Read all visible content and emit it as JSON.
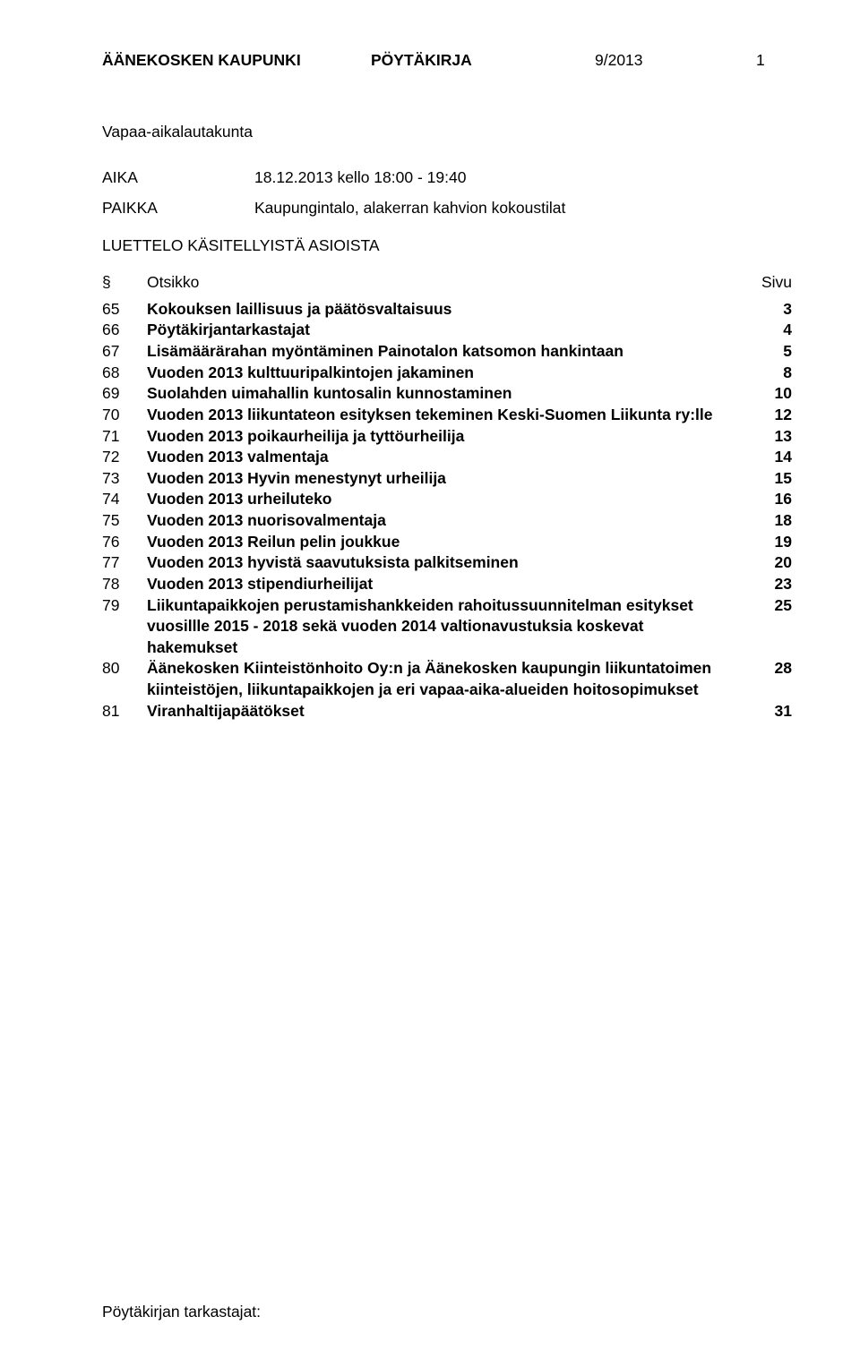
{
  "header": {
    "org": "ÄÄNEKOSKEN KAUPUNKI",
    "poytakirja": "PÖYTÄKIRJA",
    "docnum": "9/2013",
    "pagenum": "1"
  },
  "board": "Vapaa-aikalautakunta",
  "meta": {
    "aika_label": "AIKA",
    "aika_value": "18.12.2013 kello 18:00 - 19:40",
    "paikka_label": "PAIKKA",
    "paikka_value": "Kaupungintalo, alakerran kahvion kokoustilat"
  },
  "toc_heading": "LUETTELO KÄSITELLYISTÄ ASIOISTA",
  "toc_cols": {
    "section": "§",
    "title": "Otsikko",
    "page": "Sivu"
  },
  "toc": [
    {
      "n": "65",
      "t": "Kokouksen laillisuus ja päätösvaltaisuus",
      "p": "3"
    },
    {
      "n": "66",
      "t": "Pöytäkirjantarkastajat",
      "p": "4"
    },
    {
      "n": "67",
      "t": "Lisämäärärahan myöntäminen Painotalon katsomon hankintaan",
      "p": "5"
    },
    {
      "n": "68",
      "t": "Vuoden 2013 kulttuuripalkintojen jakaminen",
      "p": "8"
    },
    {
      "n": "69",
      "t": "Suolahden uimahallin kuntosalin kunnostaminen",
      "p": "10"
    },
    {
      "n": "70",
      "t": "Vuoden 2013 liikuntateon esityksen tekeminen Keski-Suomen Liikunta ry:lle",
      "p": "12"
    },
    {
      "n": "71",
      "t": "Vuoden 2013 poikaurheilija ja tyttöurheilija",
      "p": "13"
    },
    {
      "n": "72",
      "t": "Vuoden 2013 valmentaja",
      "p": "14"
    },
    {
      "n": "73",
      "t": "Vuoden 2013 Hyvin menestynyt urheilija",
      "p": "15"
    },
    {
      "n": "74",
      "t": "Vuoden 2013 urheiluteko",
      "p": "16"
    },
    {
      "n": "75",
      "t": "Vuoden 2013 nuorisovalmentaja",
      "p": "18"
    },
    {
      "n": "76",
      "t": "Vuoden 2013 Reilun pelin joukkue",
      "p": "19"
    },
    {
      "n": "77",
      "t": "Vuoden 2013 hyvistä saavutuksista palkitseminen",
      "p": "20"
    },
    {
      "n": "78",
      "t": "Vuoden 2013 stipendiurheilijat",
      "p": "23"
    },
    {
      "n": "79",
      "t": "Liikuntapaikkojen perustamishankkeiden rahoitussuunnitelman esitykset vuosillle 2015 - 2018 sekä vuoden 2014 valtionavustuksia koskevat hakemukset",
      "p": "25"
    },
    {
      "n": "80",
      "t": "Äänekosken Kiinteistönhoito Oy:n ja Äänekosken kaupungin liikuntatoimen kiinteistöjen, liikuntapaikkojen ja eri vapaa-aika-alueiden hoitosopimukset",
      "p": "28"
    },
    {
      "n": "81",
      "t": "Viranhaltijapäätökset",
      "p": "31"
    }
  ],
  "footer": "Pöytäkirjan tarkastajat:"
}
